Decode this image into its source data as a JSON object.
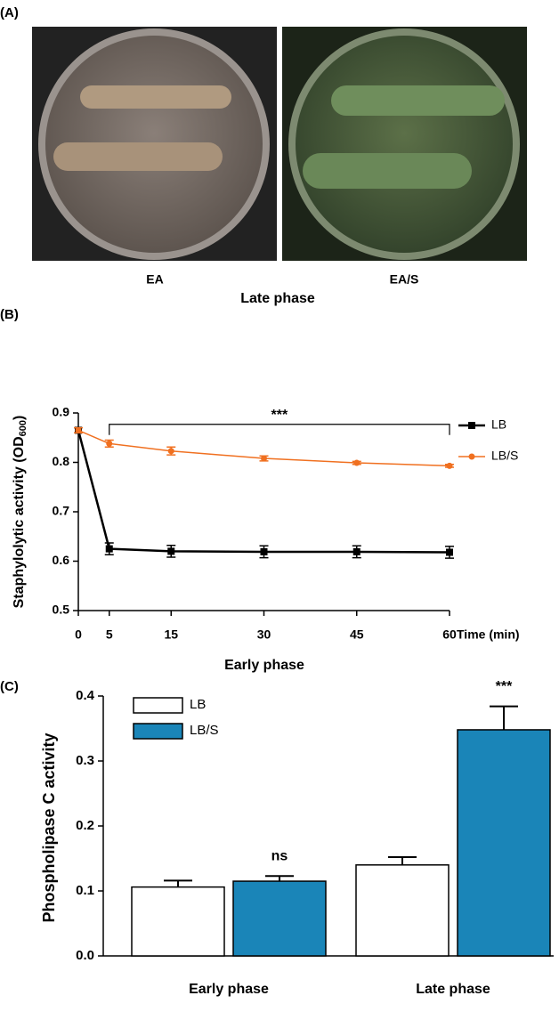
{
  "panel_a": {
    "label": "(A)",
    "images": [
      "EA",
      "EA/S"
    ],
    "caption": "Late phase"
  },
  "chart_data": [
    {
      "type": "line",
      "panel_label": "(B)",
      "ylabel": "Staphylolytic activity (OD",
      "ylabel_sub": "600",
      "ylabel_end": ")",
      "xlabel": "Time (min)",
      "caption": "Early phase",
      "x": [
        0,
        5,
        15,
        30,
        45,
        60
      ],
      "xlim": [
        0,
        60
      ],
      "xticks": [
        0,
        5,
        15,
        30,
        45,
        60
      ],
      "ylim": [
        0.5,
        0.9
      ],
      "yticks": [
        0.5,
        0.6,
        0.7,
        0.8,
        0.9
      ],
      "legend": "right",
      "series": [
        {
          "name": "LB",
          "color": "#000000",
          "marker": "square",
          "values": [
            0.865,
            0.625,
            0.62,
            0.619,
            0.619,
            0.618
          ],
          "errors": [
            0.005,
            0.012,
            0.012,
            0.012,
            0.012,
            0.012
          ]
        },
        {
          "name": "LB/S",
          "color": "#f07020",
          "marker": "circle",
          "values": [
            0.865,
            0.838,
            0.823,
            0.808,
            0.799,
            0.793
          ],
          "errors": [
            0.005,
            0.007,
            0.008,
            0.005,
            0.003,
            0.003
          ]
        }
      ],
      "annotation": {
        "text": "***",
        "x": [
          5,
          60
        ],
        "y": 0.877
      }
    },
    {
      "type": "bar",
      "panel_label": "(C)",
      "ylabel": "Phospholipase C activity",
      "categories": [
        "Early phase",
        "Late phase"
      ],
      "ylim": [
        0,
        0.4
      ],
      "yticks": [
        {
          "value": 0,
          "label": "0.0"
        },
        0.1,
        0.2,
        0.3,
        0.4
      ],
      "legend": "upper left",
      "series": [
        {
          "name": "LB",
          "color": "#ffffff",
          "values": [
            0.106,
            0.14
          ],
          "errors": [
            0.01,
            0.012
          ]
        },
        {
          "name": "LB/S",
          "color": "#1a85b8",
          "values": [
            0.115,
            0.348
          ],
          "errors": [
            0.008,
            0.036
          ],
          "annotations": [
            "ns",
            "***"
          ]
        }
      ]
    }
  ]
}
